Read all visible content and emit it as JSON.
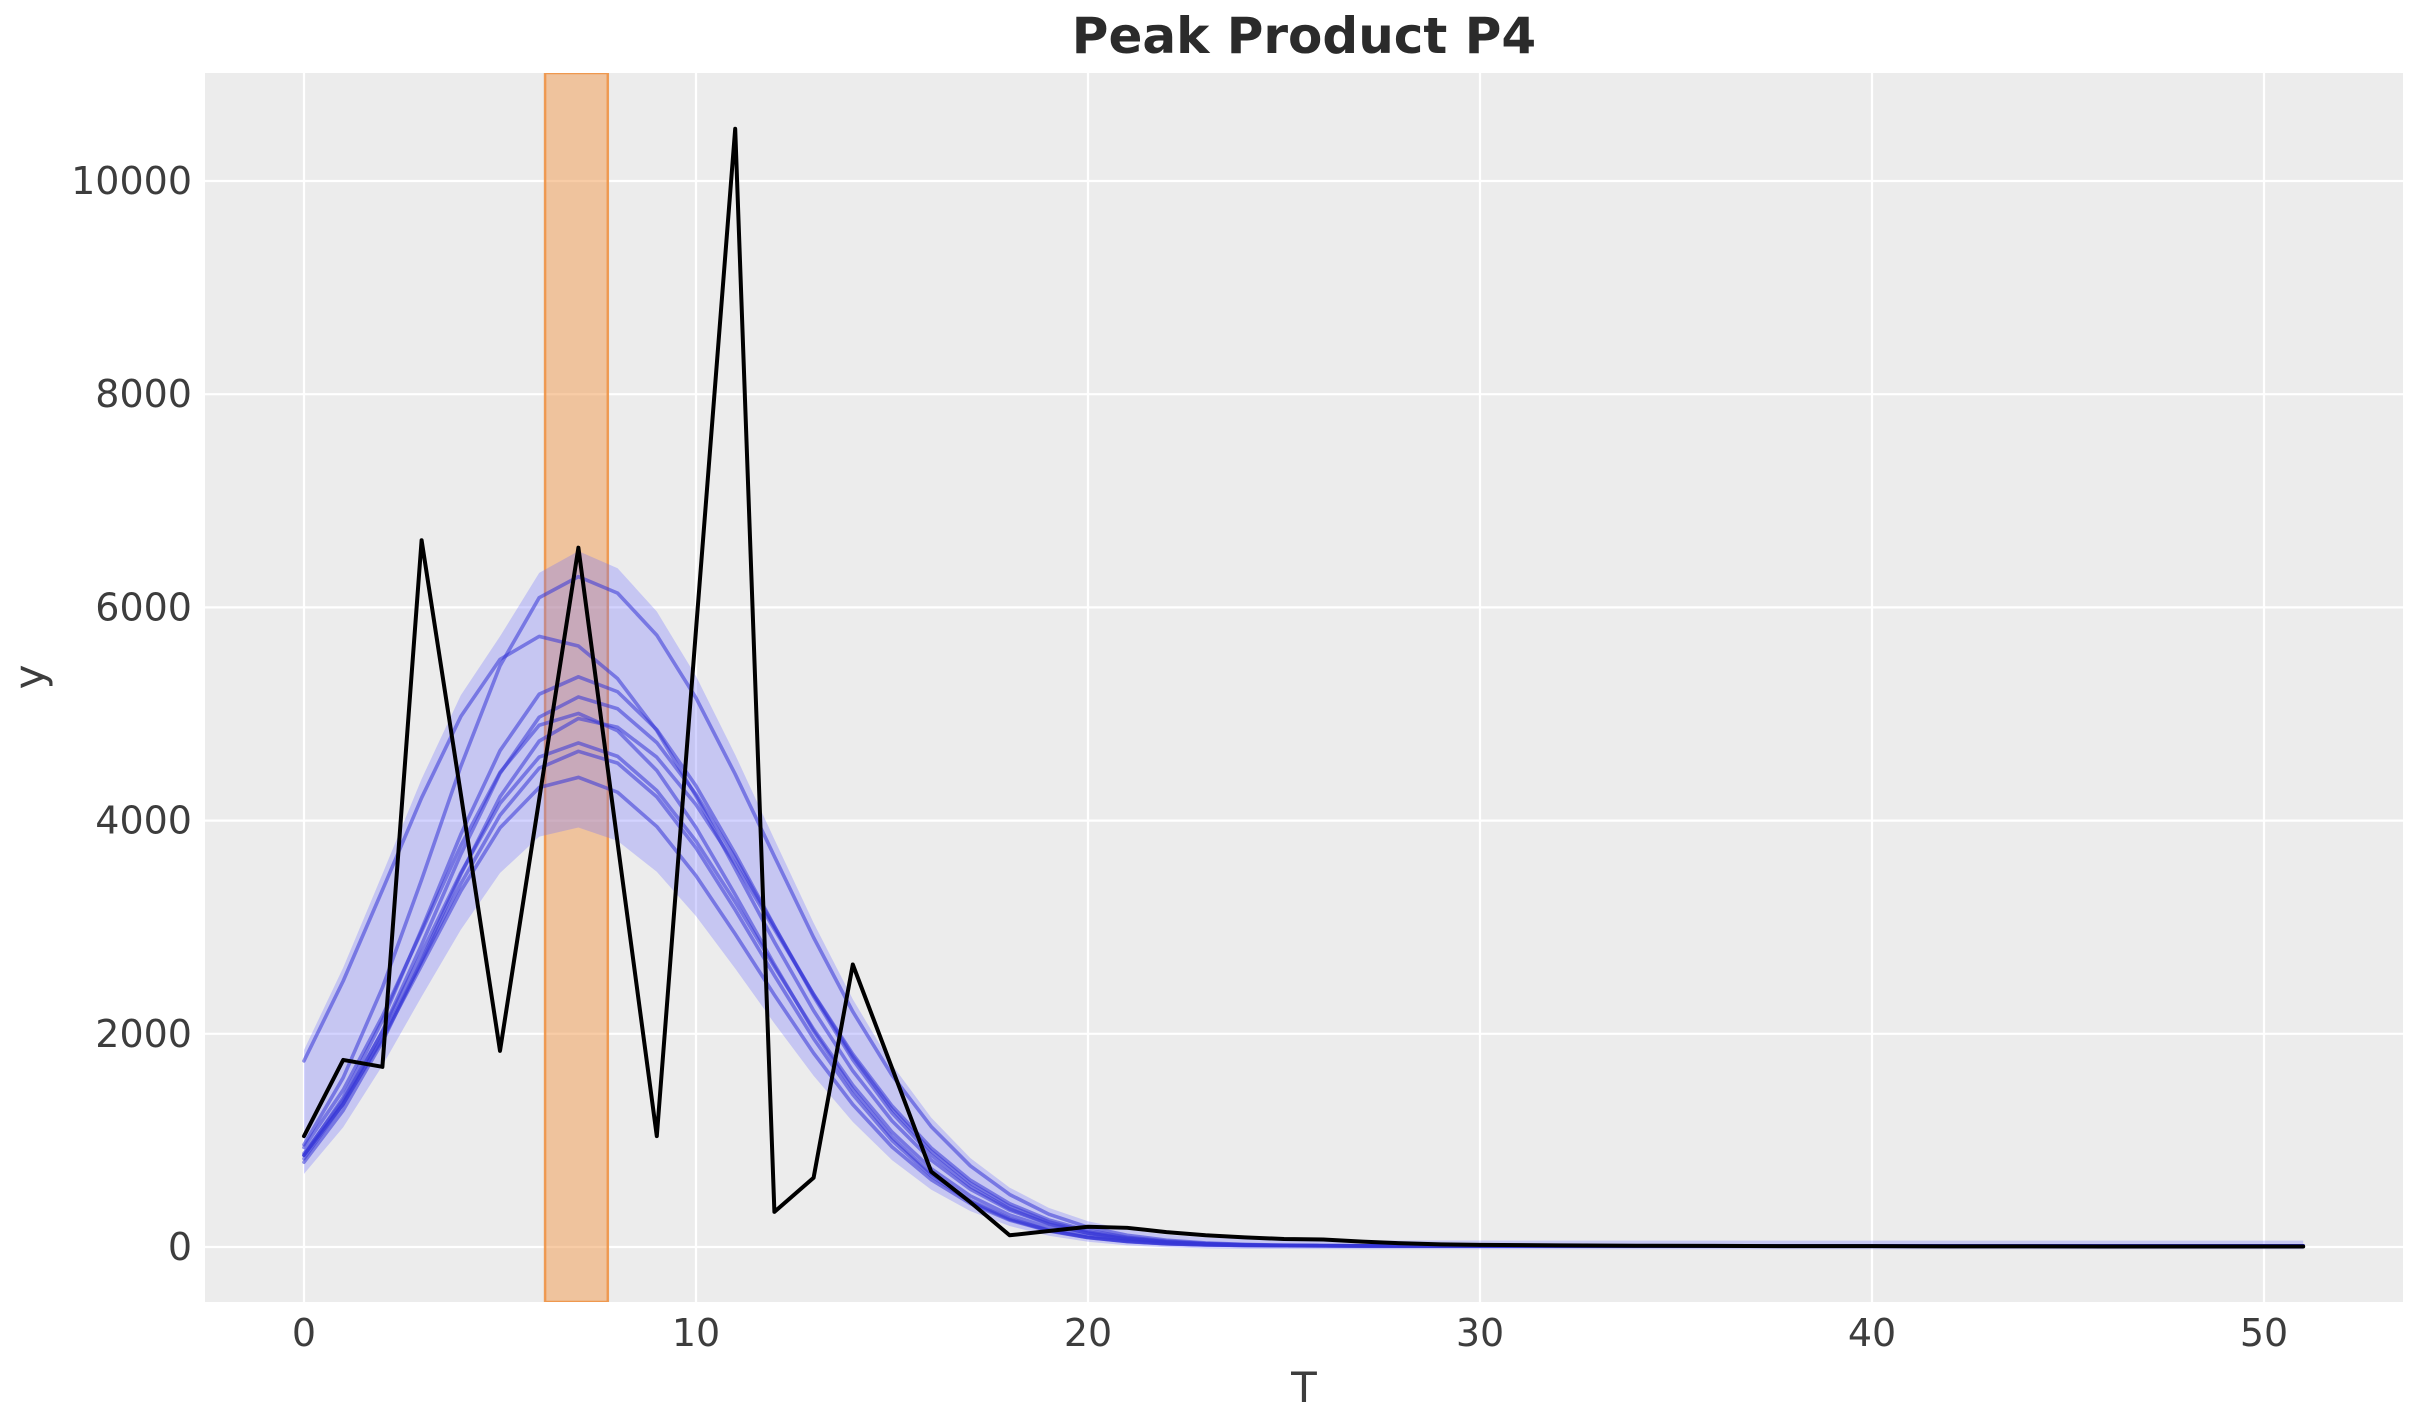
{
  "page_title": "Peak Product P4",
  "chart_data": {
    "type": "line",
    "title": "Peak Product P4",
    "xlabel": "T",
    "ylabel": "y",
    "x_ticks": [
      0,
      10,
      20,
      30,
      40,
      50
    ],
    "y_ticks": [
      0,
      2000,
      4000,
      6000,
      8000,
      10000
    ],
    "xlim": [
      -2.5,
      53.5
    ],
    "ylim": [
      -520,
      11020
    ],
    "grid": true,
    "legend": "none",
    "colors": {
      "page_background": "#ffffff",
      "plot_background": "#ececec",
      "grid": "#ffffff",
      "observed_line": "#000000",
      "ensemble_line": "rgba(55,55,215,0.55)",
      "ensemble_band": "rgba(110,110,255,0.30)",
      "highlight_fill": "rgba(242,153,78,0.50)",
      "highlight_edge": "rgba(238,148,70,0.90)",
      "tick_text": "#3d3d3d",
      "title_text": "#2b2b2b"
    },
    "highlight_band": {
      "t_start": 6.15,
      "t_end": 7.75
    },
    "observed": {
      "name": "observed-trajectory",
      "x": [
        0,
        1,
        2,
        3,
        4,
        5,
        6,
        7,
        8,
        9,
        10,
        11,
        12,
        13,
        14,
        15,
        16,
        17,
        18,
        19,
        20,
        21,
        22,
        23,
        24,
        25,
        26,
        27,
        28,
        29,
        30,
        32,
        34,
        36,
        38,
        40,
        42,
        44,
        46,
        48,
        50,
        51
      ],
      "y": [
        1040,
        1755,
        1690,
        6630,
        4250,
        1840,
        4200,
        6560,
        3790,
        1040,
        5790,
        10490,
        330,
        650,
        2650,
        1680,
        707,
        420,
        110,
        150,
        190,
        180,
        140,
        110,
        90,
        75,
        70,
        50,
        35,
        25,
        20,
        15,
        12,
        10,
        8,
        8,
        6,
        6,
        5,
        5,
        5,
        5
      ]
    },
    "ensemble": {
      "name": "posterior-draws",
      "model": "two_sided_gaussian",
      "baseline": 10,
      "t_start": 0,
      "t_end": 51,
      "t_step": 1,
      "curves": [
        {
          "peak": 6280,
          "t_peak": 6.9,
          "sigma_left": 3.55,
          "sigma_right": 4.9
        },
        {
          "peak": 5720,
          "t_peak": 6.1,
          "sigma_left": 3.95,
          "sigma_right": 5.0
        },
        {
          "peak": 5340,
          "t_peak": 6.9,
          "sigma_left": 3.6,
          "sigma_right": 4.75
        },
        {
          "peak": 5150,
          "t_peak": 7.0,
          "sigma_left": 3.65,
          "sigma_right": 4.8
        },
        {
          "peak": 5000,
          "t_peak": 6.8,
          "sigma_left": 3.7,
          "sigma_right": 4.6
        },
        {
          "peak": 4950,
          "t_peak": 7.1,
          "sigma_left": 3.7,
          "sigma_right": 4.85
        },
        {
          "peak": 4720,
          "t_peak": 6.9,
          "sigma_left": 3.75,
          "sigma_right": 4.7
        },
        {
          "peak": 4640,
          "t_peak": 7.0,
          "sigma_left": 3.8,
          "sigma_right": 4.55
        },
        {
          "peak": 4400,
          "t_peak": 6.8,
          "sigma_left": 3.75,
          "sigma_right": 4.65
        }
      ],
      "band_pad": {
        "upper_scale": 1.03,
        "upper_offset": 50,
        "lower_scale": 0.9,
        "lower_offset": -30
      }
    }
  }
}
